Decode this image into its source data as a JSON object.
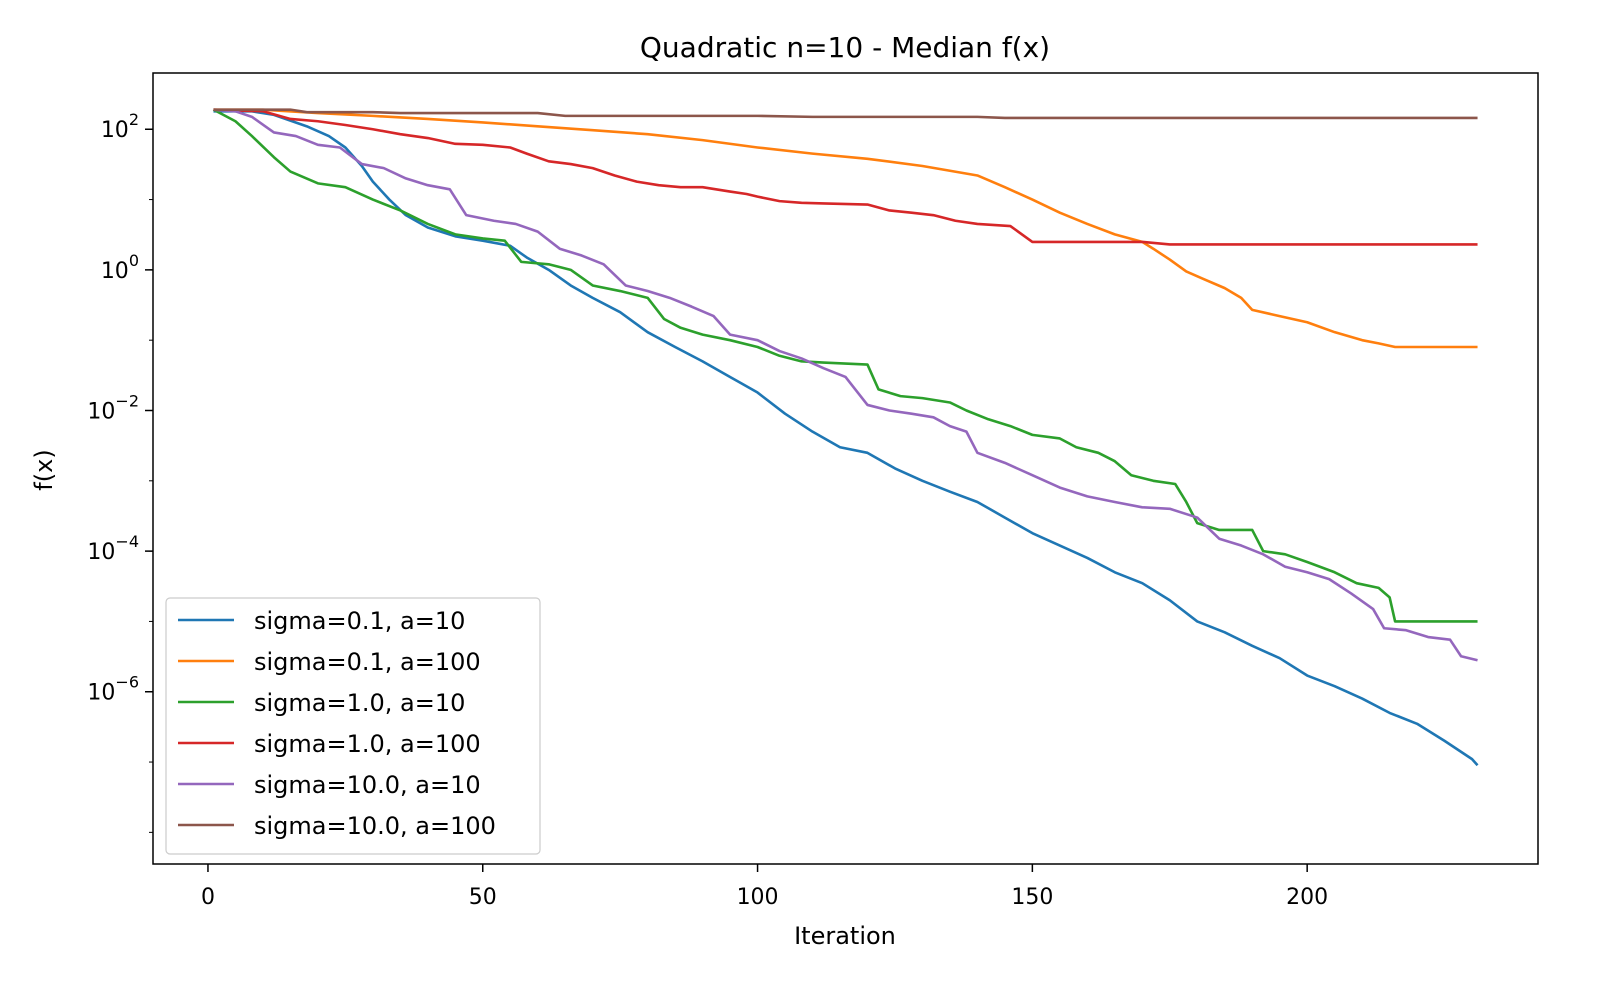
{
  "chart_data": {
    "type": "line",
    "title": "Quadratic n=10 - Median f(x)",
    "xlabel": "Iteration",
    "ylabel": "f(x)",
    "xscale": "linear",
    "yscale": "log",
    "xlim": [
      -10,
      242
    ],
    "ylim_log10": [
      -8.45,
      2.8
    ],
    "xticks": [
      0,
      50,
      100,
      150,
      200
    ],
    "yticks": [
      {
        "base": "10",
        "exp": "2",
        "value": 100
      },
      {
        "base": "10",
        "exp": "0",
        "value": 1
      },
      {
        "base": "10",
        "exp": "−2",
        "value": 0.01
      },
      {
        "base": "10",
        "exp": "−4",
        "value": 0.0001
      },
      {
        "base": "10",
        "exp": "−6",
        "value": 1e-06
      }
    ],
    "legend_position": "lower-left",
    "grid": false,
    "series": [
      {
        "name": "sigma=0.1, a=10",
        "color": "#1f77b4",
        "points": [
          [
            1,
            180
          ],
          [
            8,
            180
          ],
          [
            12,
            160
          ],
          [
            18,
            110
          ],
          [
            22,
            80
          ],
          [
            25,
            55
          ],
          [
            28,
            30
          ],
          [
            30,
            18
          ],
          [
            33,
            10
          ],
          [
            36,
            6
          ],
          [
            40,
            4
          ],
          [
            45,
            3
          ],
          [
            50,
            2.6
          ],
          [
            55,
            2.2
          ],
          [
            58,
            1.5
          ],
          [
            62,
            1.0
          ],
          [
            66,
            0.6
          ],
          [
            70,
            0.4
          ],
          [
            75,
            0.25
          ],
          [
            80,
            0.13
          ],
          [
            85,
            0.08
          ],
          [
            90,
            0.05
          ],
          [
            95,
            0.03
          ],
          [
            100,
            0.018
          ],
          [
            105,
            0.009
          ],
          [
            110,
            0.005
          ],
          [
            115,
            0.003
          ],
          [
            120,
            0.0025
          ],
          [
            125,
            0.0015
          ],
          [
            130,
            0.001
          ],
          [
            135,
            0.0007
          ],
          [
            140,
            0.0005
          ],
          [
            145,
            0.0003
          ],
          [
            150,
            0.00018
          ],
          [
            155,
            0.00012
          ],
          [
            160,
            8e-05
          ],
          [
            165,
            5e-05
          ],
          [
            170,
            3.5e-05
          ],
          [
            175,
            2e-05
          ],
          [
            180,
            1e-05
          ],
          [
            185,
            7e-06
          ],
          [
            190,
            4.5e-06
          ],
          [
            195,
            3e-06
          ],
          [
            200,
            1.7e-06
          ],
          [
            205,
            1.2e-06
          ],
          [
            210,
            8e-07
          ],
          [
            215,
            5e-07
          ],
          [
            220,
            3.5e-07
          ],
          [
            225,
            2e-07
          ],
          [
            230,
            1.1e-07
          ],
          [
            231,
            9e-08
          ]
        ]
      },
      {
        "name": "sigma=0.1, a=100",
        "color": "#ff7f0e",
        "points": [
          [
            1,
            190
          ],
          [
            10,
            190
          ],
          [
            20,
            170
          ],
          [
            30,
            155
          ],
          [
            40,
            140
          ],
          [
            50,
            125
          ],
          [
            60,
            110
          ],
          [
            70,
            97
          ],
          [
            80,
            85
          ],
          [
            90,
            70
          ],
          [
            100,
            55
          ],
          [
            110,
            45
          ],
          [
            120,
            38
          ],
          [
            130,
            30
          ],
          [
            140,
            22
          ],
          [
            145,
            15
          ],
          [
            150,
            10
          ],
          [
            155,
            6.5
          ],
          [
            160,
            4.5
          ],
          [
            165,
            3.2
          ],
          [
            170,
            2.5
          ],
          [
            172,
            2.0
          ],
          [
            175,
            1.4
          ],
          [
            178,
            0.95
          ],
          [
            181,
            0.75
          ],
          [
            185,
            0.55
          ],
          [
            188,
            0.4
          ],
          [
            190,
            0.27
          ],
          [
            195,
            0.22
          ],
          [
            200,
            0.18
          ],
          [
            205,
            0.13
          ],
          [
            210,
            0.1
          ],
          [
            213,
            0.09
          ],
          [
            216,
            0.08
          ],
          [
            231,
            0.08
          ]
        ]
      },
      {
        "name": "sigma=1.0, a=10",
        "color": "#2ca02c",
        "points": [
          [
            1,
            190
          ],
          [
            5,
            130
          ],
          [
            8,
            80
          ],
          [
            12,
            40
          ],
          [
            15,
            25
          ],
          [
            20,
            17
          ],
          [
            25,
            15
          ],
          [
            30,
            10
          ],
          [
            35,
            7
          ],
          [
            40,
            4.5
          ],
          [
            45,
            3.2
          ],
          [
            50,
            2.8
          ],
          [
            54,
            2.6
          ],
          [
            57,
            1.3
          ],
          [
            62,
            1.2
          ],
          [
            66,
            1.0
          ],
          [
            70,
            0.6
          ],
          [
            75,
            0.5
          ],
          [
            80,
            0.4
          ],
          [
            83,
            0.2
          ],
          [
            86,
            0.15
          ],
          [
            90,
            0.12
          ],
          [
            95,
            0.1
          ],
          [
            100,
            0.08
          ],
          [
            104,
            0.06
          ],
          [
            108,
            0.05
          ],
          [
            112,
            0.048
          ],
          [
            120,
            0.045
          ],
          [
            122,
            0.02
          ],
          [
            126,
            0.016
          ],
          [
            130,
            0.015
          ],
          [
            135,
            0.013
          ],
          [
            138,
            0.01
          ],
          [
            142,
            0.0075
          ],
          [
            146,
            0.006
          ],
          [
            150,
            0.0045
          ],
          [
            155,
            0.004
          ],
          [
            158,
            0.003
          ],
          [
            162,
            0.0025
          ],
          [
            165,
            0.0019
          ],
          [
            168,
            0.0012
          ],
          [
            172,
            0.001
          ],
          [
            176,
            0.0009
          ],
          [
            178,
            0.0005
          ],
          [
            180,
            0.00025
          ],
          [
            184,
            0.0002
          ],
          [
            190,
            0.0002
          ],
          [
            192,
            0.0001
          ],
          [
            196,
            9e-05
          ],
          [
            200,
            7e-05
          ],
          [
            205,
            5e-05
          ],
          [
            209,
            3.5e-05
          ],
          [
            213,
            3e-05
          ],
          [
            215,
            2.2e-05
          ],
          [
            216,
            1e-05
          ],
          [
            231,
            1e-05
          ]
        ]
      },
      {
        "name": "sigma=1.0, a=100",
        "color": "#d62728",
        "points": [
          [
            1,
            190
          ],
          [
            10,
            180
          ],
          [
            15,
            140
          ],
          [
            20,
            130
          ],
          [
            25,
            115
          ],
          [
            30,
            100
          ],
          [
            35,
            85
          ],
          [
            40,
            75
          ],
          [
            45,
            62
          ],
          [
            50,
            60
          ],
          [
            55,
            55
          ],
          [
            58,
            45
          ],
          [
            62,
            35
          ],
          [
            66,
            32
          ],
          [
            70,
            28
          ],
          [
            74,
            22
          ],
          [
            78,
            18
          ],
          [
            82,
            16
          ],
          [
            86,
            15
          ],
          [
            90,
            15
          ],
          [
            95,
            13
          ],
          [
            98,
            12
          ],
          [
            100,
            11
          ],
          [
            104,
            9.5
          ],
          [
            108,
            9
          ],
          [
            112,
            8.8
          ],
          [
            120,
            8.5
          ],
          [
            124,
            7
          ],
          [
            128,
            6.5
          ],
          [
            132,
            6
          ],
          [
            136,
            5
          ],
          [
            140,
            4.5
          ],
          [
            146,
            4.2
          ],
          [
            150,
            2.5
          ],
          [
            170,
            2.5
          ],
          [
            175,
            2.3
          ],
          [
            231,
            2.3
          ]
        ]
      },
      {
        "name": "sigma=10.0, a=10",
        "color": "#9467bd",
        "points": [
          [
            1,
            190
          ],
          [
            5,
            180
          ],
          [
            8,
            150
          ],
          [
            12,
            90
          ],
          [
            16,
            80
          ],
          [
            20,
            60
          ],
          [
            24,
            55
          ],
          [
            28,
            32
          ],
          [
            32,
            28
          ],
          [
            36,
            20
          ],
          [
            40,
            16
          ],
          [
            44,
            14
          ],
          [
            47,
            6
          ],
          [
            52,
            5
          ],
          [
            56,
            4.5
          ],
          [
            60,
            3.5
          ],
          [
            64,
            2
          ],
          [
            68,
            1.6
          ],
          [
            72,
            1.2
          ],
          [
            76,
            0.6
          ],
          [
            80,
            0.5
          ],
          [
            84,
            0.4
          ],
          [
            88,
            0.3
          ],
          [
            92,
            0.22
          ],
          [
            95,
            0.12
          ],
          [
            100,
            0.1
          ],
          [
            104,
            0.07
          ],
          [
            108,
            0.055
          ],
          [
            112,
            0.04
          ],
          [
            116,
            0.03
          ],
          [
            120,
            0.012
          ],
          [
            124,
            0.01
          ],
          [
            128,
            0.009
          ],
          [
            132,
            0.008
          ],
          [
            135,
            0.006
          ],
          [
            138,
            0.005
          ],
          [
            140,
            0.0025
          ],
          [
            145,
            0.0018
          ],
          [
            150,
            0.0012
          ],
          [
            155,
            0.0008
          ],
          [
            160,
            0.0006
          ],
          [
            165,
            0.0005
          ],
          [
            170,
            0.00042
          ],
          [
            175,
            0.0004
          ],
          [
            180,
            0.0003
          ],
          [
            184,
            0.00015
          ],
          [
            188,
            0.00012
          ],
          [
            192,
            9e-05
          ],
          [
            196,
            6e-05
          ],
          [
            200,
            5e-05
          ],
          [
            204,
            4e-05
          ],
          [
            208,
            2.5e-05
          ],
          [
            212,
            1.5e-05
          ],
          [
            214,
            8e-06
          ],
          [
            218,
            7.5e-06
          ],
          [
            222,
            6e-06
          ],
          [
            226,
            5.5e-06
          ],
          [
            228,
            3.2e-06
          ],
          [
            231,
            2.8e-06
          ]
        ]
      },
      {
        "name": "sigma=10.0, a=100",
        "color": "#8c564b",
        "points": [
          [
            1,
            190
          ],
          [
            15,
            190
          ],
          [
            18,
            175
          ],
          [
            30,
            175
          ],
          [
            35,
            170
          ],
          [
            60,
            170
          ],
          [
            65,
            155
          ],
          [
            100,
            155
          ],
          [
            110,
            150
          ],
          [
            140,
            150
          ],
          [
            145,
            145
          ],
          [
            231,
            145
          ]
        ]
      }
    ]
  }
}
